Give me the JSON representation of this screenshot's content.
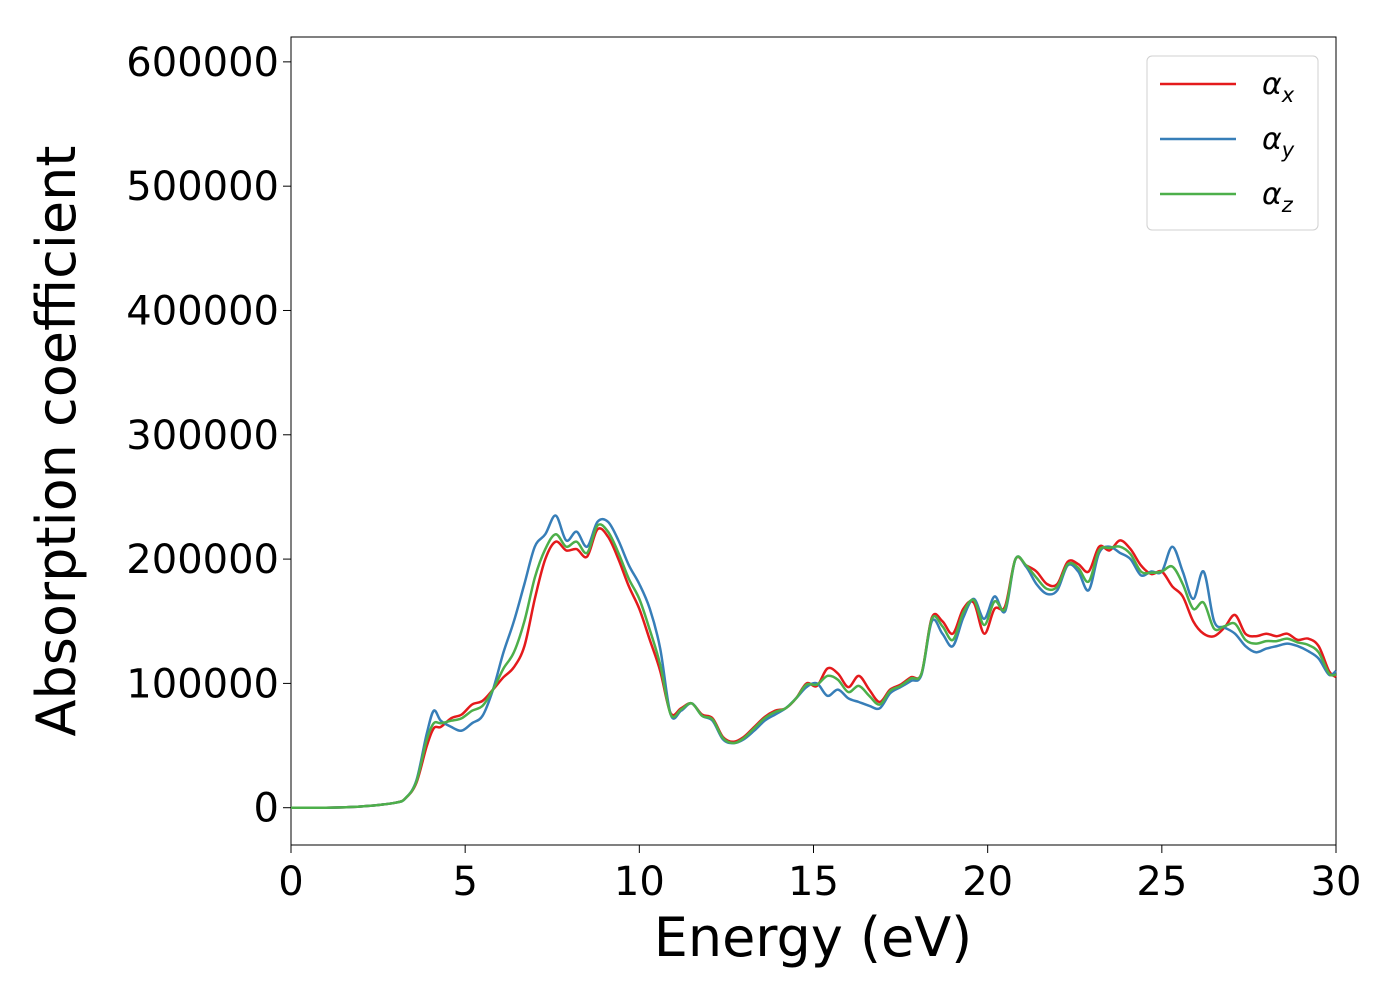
{
  "chart_data": {
    "type": "line",
    "title": "",
    "xlabel": "Energy (eV)",
    "ylabel": "Absorption coefficient",
    "xlim": [
      0,
      30
    ],
    "ylim": [
      -30000,
      620000
    ],
    "xticks": [
      0,
      5,
      10,
      15,
      20,
      25,
      30
    ],
    "xtick_labels": [
      "0",
      "5",
      "10",
      "15",
      "20",
      "25",
      "30"
    ],
    "yticks": [
      0,
      100000,
      200000,
      300000,
      400000,
      500000,
      600000
    ],
    "ytick_labels": [
      "0",
      "100000",
      "200000",
      "300000",
      "400000",
      "500000",
      "600000"
    ],
    "grid": false,
    "legend_position": "top-right",
    "x": [
      0,
      1,
      2,
      3,
      3.3,
      3.6,
      3.9,
      4.1,
      4.3,
      4.6,
      4.9,
      5.2,
      5.5,
      5.8,
      6.1,
      6.4,
      6.7,
      7.0,
      7.3,
      7.6,
      7.9,
      8.2,
      8.5,
      8.8,
      9.1,
      9.4,
      9.7,
      10.0,
      10.3,
      10.6,
      10.9,
      11.2,
      11.5,
      11.8,
      12.1,
      12.4,
      12.7,
      13.0,
      13.3,
      13.6,
      13.9,
      14.2,
      14.5,
      14.8,
      15.1,
      15.4,
      15.7,
      16.0,
      16.3,
      16.6,
      16.9,
      17.2,
      17.5,
      17.8,
      18.1,
      18.4,
      18.7,
      19.0,
      19.3,
      19.6,
      19.9,
      20.2,
      20.5,
      20.8,
      21.1,
      21.4,
      21.7,
      22.0,
      22.3,
      22.6,
      22.9,
      23.2,
      23.5,
      23.8,
      24.1,
      24.4,
      24.7,
      25.0,
      25.3,
      25.6,
      25.9,
      26.2,
      26.5,
      26.8,
      27.1,
      27.4,
      27.7,
      28.0,
      28.3,
      28.6,
      28.9,
      29.2,
      29.5,
      29.8,
      30.0
    ],
    "series": [
      {
        "name": "αx",
        "color": "#e41a1c",
        "values": [
          0,
          0,
          1000,
          4000,
          8000,
          20000,
          50000,
          64000,
          65000,
          72000,
          75000,
          83000,
          86000,
          95000,
          105000,
          113000,
          130000,
          168000,
          200000,
          214000,
          207000,
          208000,
          202000,
          224000,
          218000,
          200000,
          178000,
          160000,
          135000,
          110000,
          76000,
          80000,
          84000,
          75000,
          72000,
          57000,
          53000,
          57000,
          65000,
          73000,
          78000,
          80000,
          88000,
          100000,
          98000,
          112000,
          108000,
          97000,
          106000,
          95000,
          85000,
          95000,
          99000,
          105000,
          108000,
          153000,
          150000,
          140000,
          160000,
          165000,
          140000,
          160000,
          162000,
          200000,
          195000,
          190000,
          180000,
          180000,
          198000,
          196000,
          190000,
          210000,
          207000,
          215000,
          208000,
          195000,
          188000,
          190000,
          178000,
          170000,
          150000,
          140000,
          138000,
          145000,
          155000,
          140000,
          138000,
          140000,
          138000,
          140000,
          135000,
          136000,
          130000,
          110000,
          105000
        ]
      },
      {
        "name": "αy",
        "color": "#377eb8",
        "values": [
          0,
          0,
          1000,
          4000,
          8000,
          22000,
          60000,
          78000,
          70000,
          65000,
          62000,
          68000,
          74000,
          95000,
          125000,
          150000,
          180000,
          210000,
          220000,
          235000,
          215000,
          222000,
          210000,
          230000,
          230000,
          215000,
          195000,
          180000,
          160000,
          128000,
          75000,
          78000,
          84000,
          74000,
          70000,
          55000,
          52000,
          55000,
          62000,
          70000,
          75000,
          80000,
          88000,
          97000,
          100000,
          90000,
          95000,
          88000,
          85000,
          82000,
          80000,
          92000,
          97000,
          102000,
          107000,
          150000,
          140000,
          130000,
          153000,
          168000,
          152000,
          170000,
          158000,
          200000,
          194000,
          180000,
          172000,
          175000,
          195000,
          190000,
          175000,
          205000,
          210000,
          205000,
          200000,
          187000,
          190000,
          190000,
          210000,
          190000,
          168000,
          190000,
          150000,
          145000,
          140000,
          130000,
          125000,
          128000,
          130000,
          132000,
          130000,
          126000,
          120000,
          107000,
          110000
        ]
      },
      {
        "name": "αz",
        "color": "#4daf4a",
        "values": [
          0,
          0,
          1000,
          4000,
          8000,
          21000,
          55000,
          68000,
          68000,
          70000,
          72000,
          78000,
          82000,
          95000,
          112000,
          125000,
          150000,
          185000,
          208000,
          220000,
          210000,
          214000,
          205000,
          227000,
          222000,
          205000,
          184000,
          168000,
          143000,
          115000,
          75000,
          79000,
          84000,
          74000,
          71000,
          56000,
          52000,
          56000,
          64000,
          72000,
          77000,
          80000,
          88000,
          99000,
          99000,
          106000,
          103000,
          93000,
          98000,
          90000,
          83000,
          94000,
          98000,
          104000,
          108000,
          152000,
          146000,
          135000,
          157000,
          167000,
          147000,
          166000,
          160000,
          200000,
          195000,
          185000,
          176000,
          178000,
          196000,
          193000,
          182000,
          207000,
          209000,
          210000,
          204000,
          190000,
          189000,
          190000,
          194000,
          180000,
          160000,
          165000,
          144000,
          146000,
          148000,
          135000,
          132000,
          134000,
          134000,
          136000,
          133000,
          131000,
          125000,
          108000,
          107000
        ]
      }
    ]
  }
}
